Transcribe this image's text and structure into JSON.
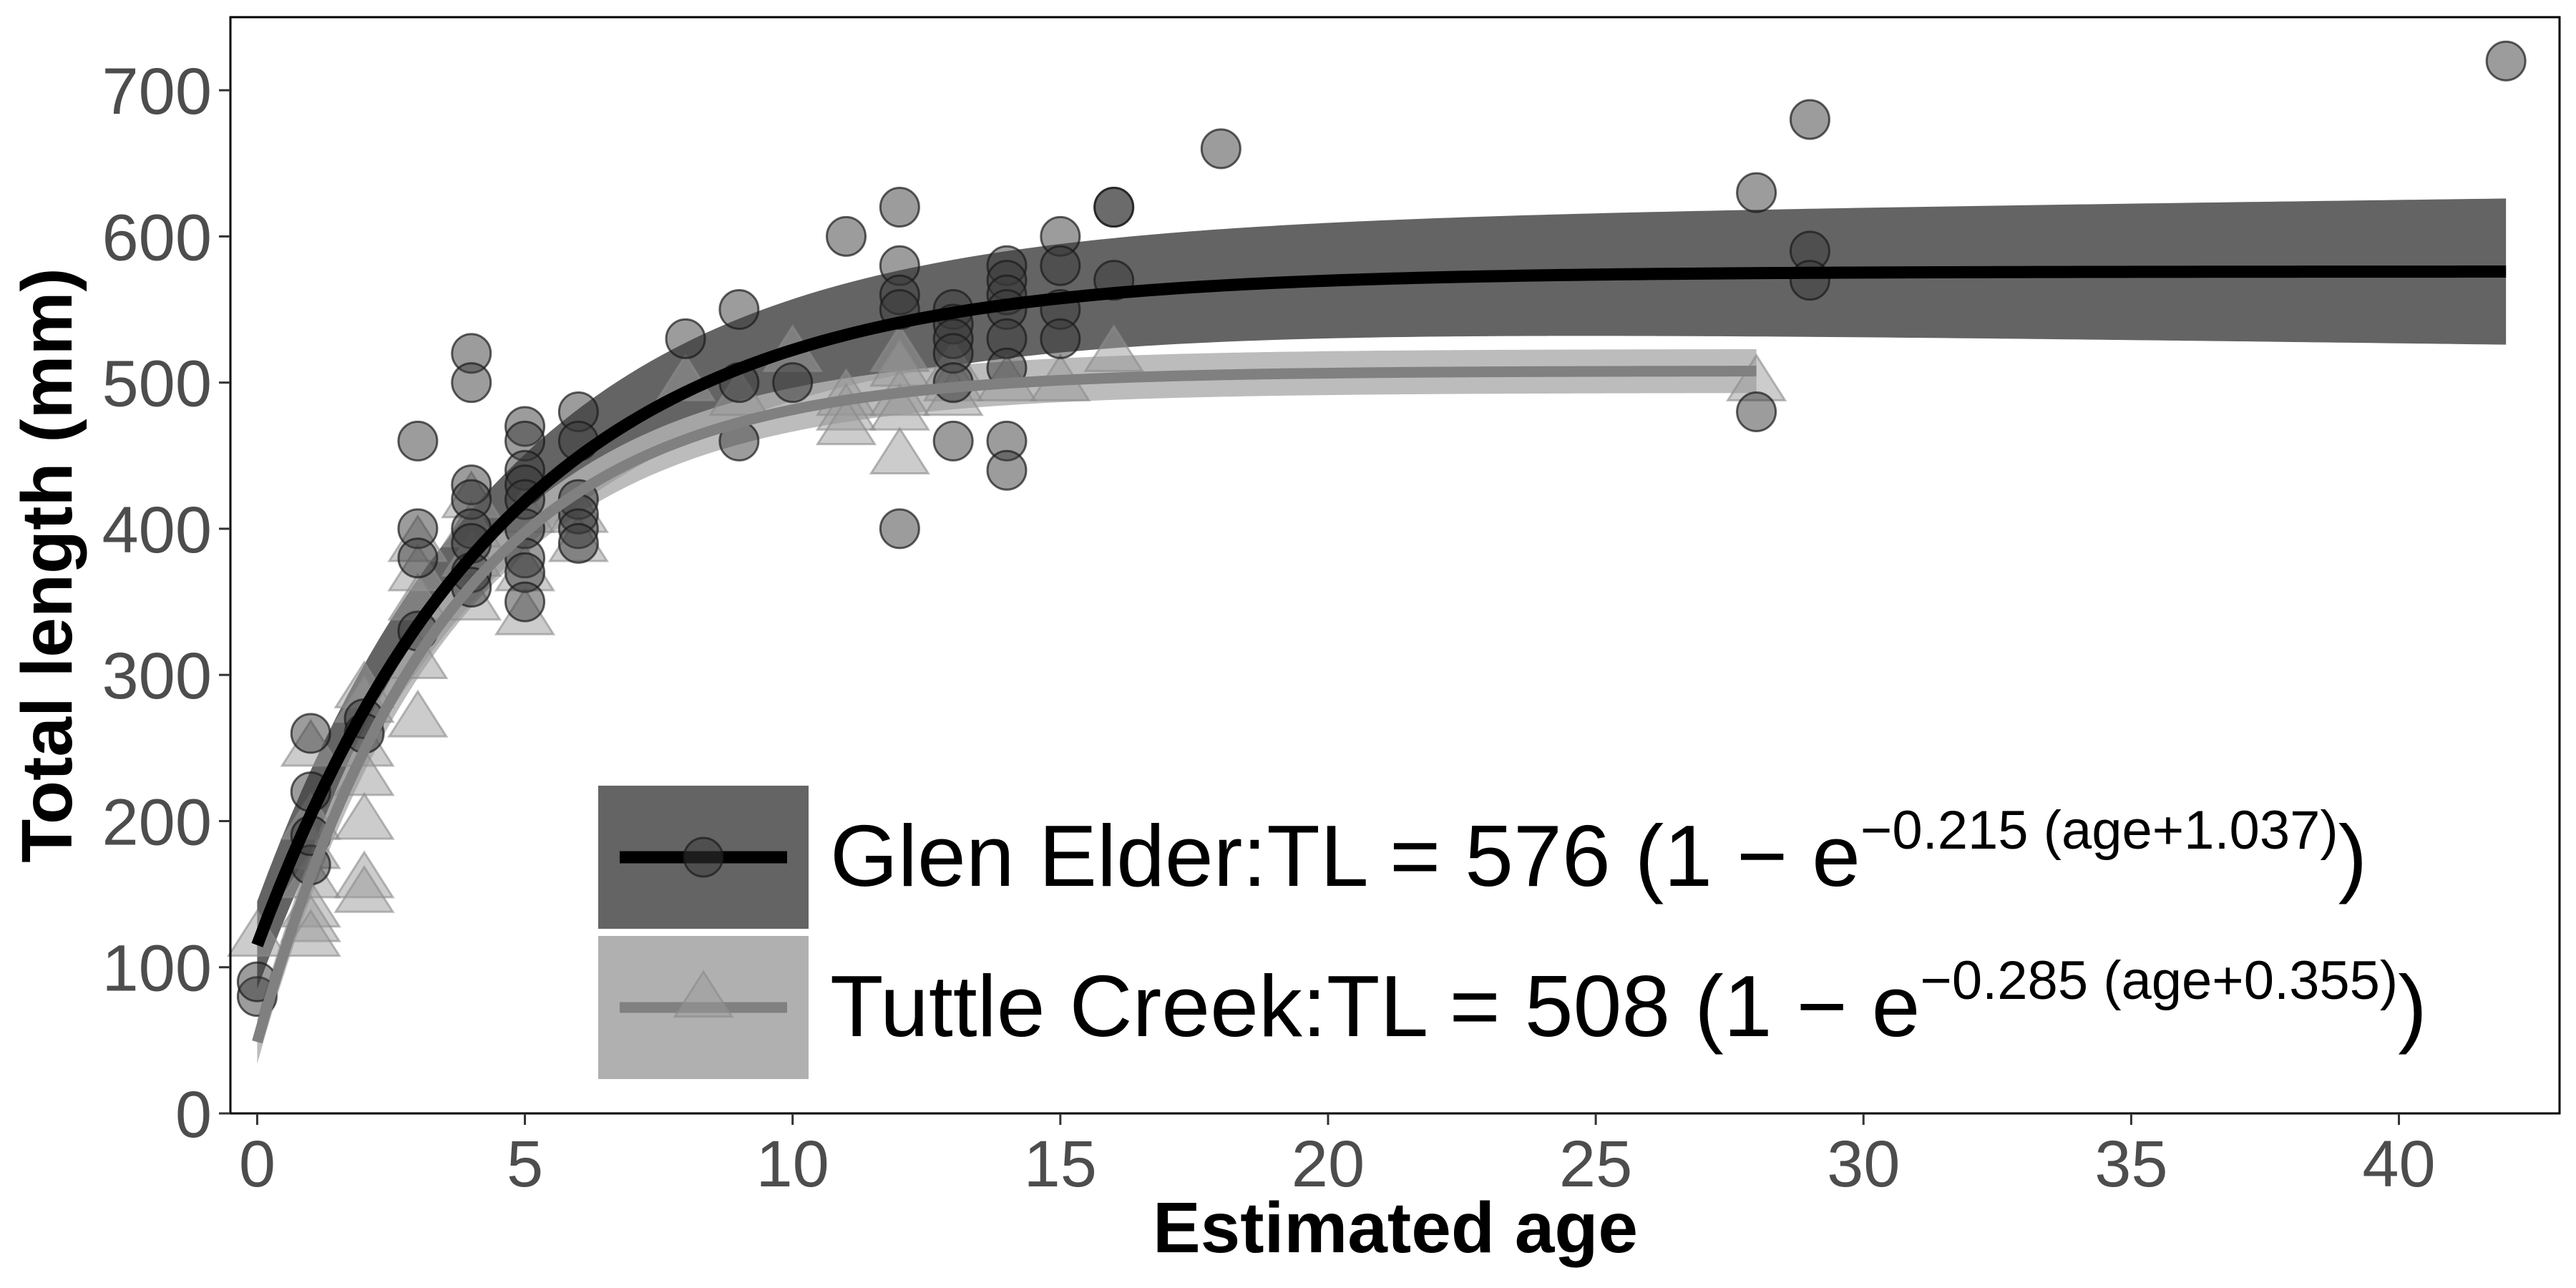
{
  "chart_data": {
    "type": "scatter",
    "xlabel": "Estimated age",
    "ylabel": "Total length (mm)",
    "xlim": [
      -0.5,
      43
    ],
    "ylim": [
      0,
      750
    ],
    "x_ticks": [
      0,
      5,
      10,
      15,
      20,
      25,
      30,
      35,
      40
    ],
    "y_ticks": [
      0,
      100,
      200,
      300,
      400,
      500,
      600,
      700
    ],
    "grid": false,
    "legend_position": "bottom-center",
    "series": [
      {
        "name": "Glen Elder",
        "marker": "circle",
        "color": "#000000",
        "band_color": "#646464",
        "equation": {
          "prefix": "TL = 576 (1 − e",
          "exponent": "−0.215 (age+1.037)",
          "suffix": ")"
        },
        "model": {
          "Linf": 576,
          "K": 0.215,
          "t0": -1.037,
          "fit_range": [
            0,
            42
          ],
          "band": [
            30,
            50
          ]
        },
        "points": [
          [
            0,
            80
          ],
          [
            0,
            90
          ],
          [
            1,
            260
          ],
          [
            1,
            220
          ],
          [
            1,
            170
          ],
          [
            1,
            190
          ],
          [
            2,
            270
          ],
          [
            2,
            260
          ],
          [
            3,
            460
          ],
          [
            3,
            400
          ],
          [
            3,
            380
          ],
          [
            3,
            330
          ],
          [
            4,
            520
          ],
          [
            4,
            500
          ],
          [
            4,
            430
          ],
          [
            4,
            420
          ],
          [
            4,
            400
          ],
          [
            4,
            390
          ],
          [
            4,
            370
          ],
          [
            4,
            360
          ],
          [
            5,
            470
          ],
          [
            5,
            460
          ],
          [
            5,
            440
          ],
          [
            5,
            430
          ],
          [
            5,
            420
          ],
          [
            5,
            400
          ],
          [
            5,
            380
          ],
          [
            5,
            370
          ],
          [
            5,
            350
          ],
          [
            6,
            480
          ],
          [
            6,
            460
          ],
          [
            6,
            420
          ],
          [
            6,
            410
          ],
          [
            6,
            400
          ],
          [
            6,
            390
          ],
          [
            8,
            530
          ],
          [
            9,
            550
          ],
          [
            9,
            500
          ],
          [
            9,
            460
          ],
          [
            10,
            500
          ],
          [
            11,
            600
          ],
          [
            12,
            620
          ],
          [
            12,
            580
          ],
          [
            12,
            560
          ],
          [
            12,
            550
          ],
          [
            12,
            400
          ],
          [
            13,
            550
          ],
          [
            13,
            540
          ],
          [
            13,
            530
          ],
          [
            13,
            520
          ],
          [
            13,
            500
          ],
          [
            13,
            460
          ],
          [
            14,
            580
          ],
          [
            14,
            570
          ],
          [
            14,
            560
          ],
          [
            14,
            550
          ],
          [
            14,
            530
          ],
          [
            14,
            510
          ],
          [
            14,
            460
          ],
          [
            14,
            440
          ],
          [
            15,
            600
          ],
          [
            15,
            580
          ],
          [
            15,
            550
          ],
          [
            15,
            530
          ],
          [
            16,
            620
          ],
          [
            16,
            620
          ],
          [
            16,
            570
          ],
          [
            18,
            660
          ],
          [
            28,
            630
          ],
          [
            28,
            480
          ],
          [
            29,
            680
          ],
          [
            29,
            590
          ],
          [
            29,
            570
          ],
          [
            42,
            720
          ]
        ]
      },
      {
        "name": "Tuttle Creek",
        "marker": "triangle",
        "color": "#808080",
        "band_color": "#b0b0b0",
        "equation": {
          "prefix": "TL = 508 (1 − e",
          "exponent": "−0.285 (age+0.355)",
          "suffix": ")"
        },
        "model": {
          "Linf": 508,
          "K": 0.285,
          "t0": -0.355,
          "fit_range": [
            0,
            28
          ],
          "band": [
            15,
            15
          ]
        },
        "points": [
          [
            0,
            120
          ],
          [
            1,
            250
          ],
          [
            1,
            200
          ],
          [
            1,
            180
          ],
          [
            1,
            160
          ],
          [
            1,
            140
          ],
          [
            1,
            130
          ],
          [
            1,
            120
          ],
          [
            2,
            290
          ],
          [
            2,
            280
          ],
          [
            2,
            250
          ],
          [
            2,
            230
          ],
          [
            2,
            200
          ],
          [
            2,
            160
          ],
          [
            2,
            150
          ],
          [
            3,
            390
          ],
          [
            3,
            370
          ],
          [
            3,
            350
          ],
          [
            3,
            310
          ],
          [
            3,
            270
          ],
          [
            4,
            420
          ],
          [
            4,
            400
          ],
          [
            4,
            380
          ],
          [
            4,
            350
          ],
          [
            5,
            410
          ],
          [
            5,
            370
          ],
          [
            5,
            340
          ],
          [
            6,
            410
          ],
          [
            6,
            390
          ],
          [
            8,
            500
          ],
          [
            9,
            490
          ],
          [
            10,
            520
          ],
          [
            11,
            490
          ],
          [
            11,
            480
          ],
          [
            11,
            470
          ],
          [
            12,
            520
          ],
          [
            12,
            510
          ],
          [
            12,
            490
          ],
          [
            12,
            480
          ],
          [
            12,
            450
          ],
          [
            13,
            510
          ],
          [
            13,
            500
          ],
          [
            13,
            490
          ],
          [
            14,
            500
          ],
          [
            15,
            500
          ],
          [
            16,
            520
          ],
          [
            28,
            500
          ]
        ]
      }
    ]
  }
}
